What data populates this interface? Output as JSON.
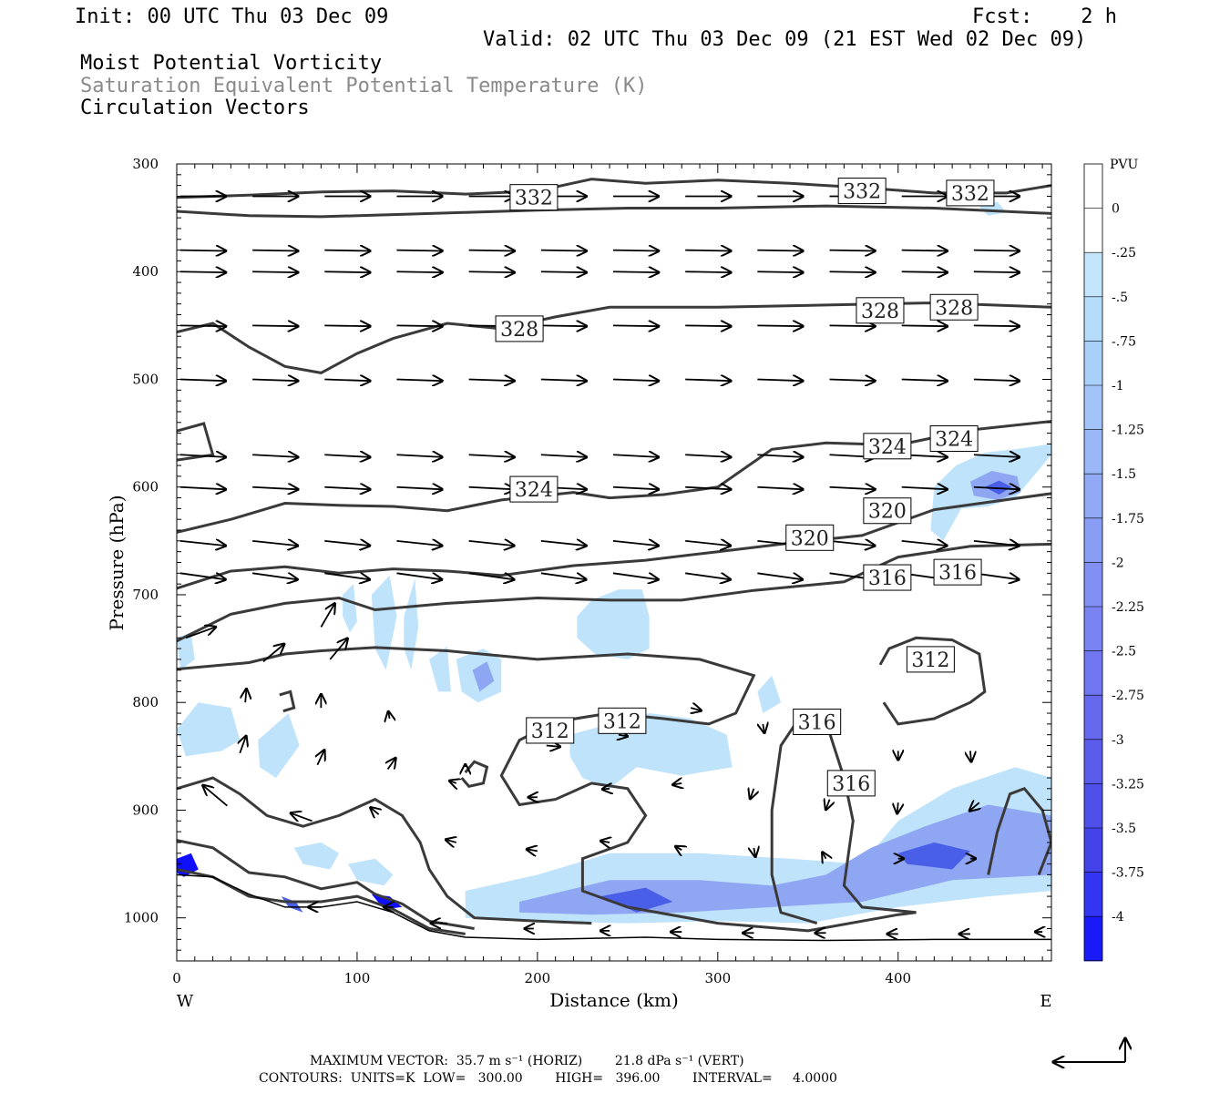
{
  "header": {
    "init": "Init: 00 UTC Thu 03 Dec 09",
    "fcst": "Fcst:    2 h",
    "valid": "Valid: 02 UTC Thu 03 Dec 09 (21 EST Wed 02 Dec 09)",
    "field1": "Moist Potential Vorticity",
    "field2": "Saturation Equivalent Potential Temperature (K)",
    "field3": "Circulation Vectors"
  },
  "footer": {
    "max_vector": "MAXIMUM VECTOR:  35.7 m s⁻¹ (HORIZ)        21.8 dPa s⁻¹ (VERT)",
    "contours": "CONTOURS:  UNITS=K  LOW=   300.00        HIGH=   396.00        INTERVAL=     4.0000"
  },
  "colors": {
    "contour": "#3a3a3a",
    "vector": "#000000",
    "pv_light": "#bfe3fb",
    "pv_mid": "#8fa6f2",
    "pv_strong": "#4a5fe8",
    "pv_max": "#1010ff"
  },
  "chart_data": {
    "type": "contour",
    "xlabel": "Distance (km)",
    "ylabel": "Pressure (hPa)",
    "xlim": [
      0,
      485
    ],
    "ylim": [
      1040,
      300
    ],
    "x_ticks": [
      "0",
      "100",
      "200",
      "300",
      "400"
    ],
    "x_tick_values": [
      0,
      100,
      200,
      300,
      400
    ],
    "y_ticks": [
      "300",
      "400",
      "500",
      "600",
      "700",
      "800",
      "900",
      "1000"
    ],
    "y_tick_values": [
      300,
      400,
      500,
      600,
      700,
      800,
      900,
      1000
    ],
    "x_end_labels": {
      "left": "W",
      "right": "E"
    },
    "colorbar": {
      "label": "PVU",
      "levels": [
        "0",
        "-.25",
        "-.5",
        "-.75",
        "-1",
        "-1.25",
        "-1.5",
        "-1.75",
        "-2",
        "-2.25",
        "-2.5",
        "-2.75",
        "-3",
        "-3.25",
        "-3.5",
        "-3.75",
        "-4"
      ],
      "colors": [
        "#ffffff",
        "#ffffff",
        "#c4e6fc",
        "#b6dcfb",
        "#a9d0f9",
        "#a2c4f8",
        "#9ab7f7",
        "#92aaf5",
        "#8a9df4",
        "#8290f3",
        "#7983f1",
        "#7076f0",
        "#6669ee",
        "#5b5cec",
        "#4f4fea",
        "#4242e8",
        "#3434f3",
        "#1a1af8"
      ]
    },
    "contour_labels": [
      {
        "text": "332",
        "x": 198,
        "p": 331
      },
      {
        "text": "332",
        "x": 380,
        "p": 325
      },
      {
        "text": "332",
        "x": 440,
        "p": 327
      },
      {
        "text": "328",
        "x": 190,
        "p": 453
      },
      {
        "text": "328",
        "x": 390,
        "p": 436
      },
      {
        "text": "328",
        "x": 431,
        "p": 433
      },
      {
        "text": "324",
        "x": 198,
        "p": 602
      },
      {
        "text": "324",
        "x": 394,
        "p": 562
      },
      {
        "text": "324",
        "x": 431,
        "p": 555
      },
      {
        "text": "320",
        "x": 351,
        "p": 647
      },
      {
        "text": "320",
        "x": 394,
        "p": 622
      },
      {
        "text": "316",
        "x": 394,
        "p": 684
      },
      {
        "text": "316",
        "x": 433,
        "p": 679
      },
      {
        "text": "316",
        "x": 355,
        "p": 818
      },
      {
        "text": "316",
        "x": 374,
        "p": 875
      },
      {
        "text": "312",
        "x": 418,
        "p": 760
      },
      {
        "text": "312",
        "x": 207,
        "p": 826
      },
      {
        "text": "312",
        "x": 247,
        "p": 817
      }
    ]
  }
}
